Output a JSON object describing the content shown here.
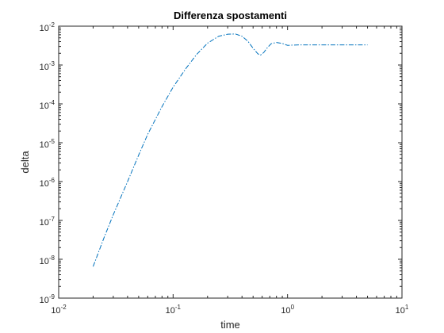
{
  "chart_data": {
    "type": "line",
    "title": "Differenza spostamenti",
    "xlabel": "time",
    "ylabel": "delta",
    "xscale": "log",
    "yscale": "log",
    "xlim": [
      0.01,
      10
    ],
    "ylim": [
      1e-09,
      0.01
    ],
    "x_ticks": [
      {
        "base": "10",
        "exp": "-2"
      },
      {
        "base": "10",
        "exp": "-1"
      },
      {
        "base": "10",
        "exp": "0"
      },
      {
        "base": "10",
        "exp": "1"
      }
    ],
    "y_ticks": [
      {
        "base": "10",
        "exp": "-9"
      },
      {
        "base": "10",
        "exp": "-8"
      },
      {
        "base": "10",
        "exp": "-7"
      },
      {
        "base": "10",
        "exp": "-6"
      },
      {
        "base": "10",
        "exp": "-5"
      },
      {
        "base": "10",
        "exp": "-4"
      },
      {
        "base": "10",
        "exp": "-3"
      },
      {
        "base": "10",
        "exp": "-2"
      }
    ],
    "grid": false,
    "line_style": "dash-dot",
    "series_color": "#0072BD",
    "series": [
      {
        "x": [
          0.02,
          0.025,
          0.03,
          0.04,
          0.05,
          0.06,
          0.08,
          0.1,
          0.13,
          0.16,
          0.2,
          0.25,
          0.3,
          0.35,
          0.4,
          0.45,
          0.5,
          0.55,
          0.58,
          0.62,
          0.66,
          0.72,
          0.8,
          0.9,
          1.0,
          1.1,
          1.3,
          1.6,
          2,
          3,
          5
        ],
        "y": [
          6.5e-09,
          3.7e-08,
          1.4e-07,
          1e-06,
          4.8e-06,
          1.65e-05,
          8.5e-05,
          0.00027,
          0.00083,
          0.00185,
          0.00365,
          0.0055,
          0.0062,
          0.0063,
          0.0055,
          0.0041,
          0.0027,
          0.00195,
          0.0018,
          0.0021,
          0.0027,
          0.00355,
          0.0038,
          0.0036,
          0.0032,
          0.00325,
          0.0033,
          0.0033,
          0.0033,
          0.0033,
          0.0033
        ]
      }
    ]
  }
}
